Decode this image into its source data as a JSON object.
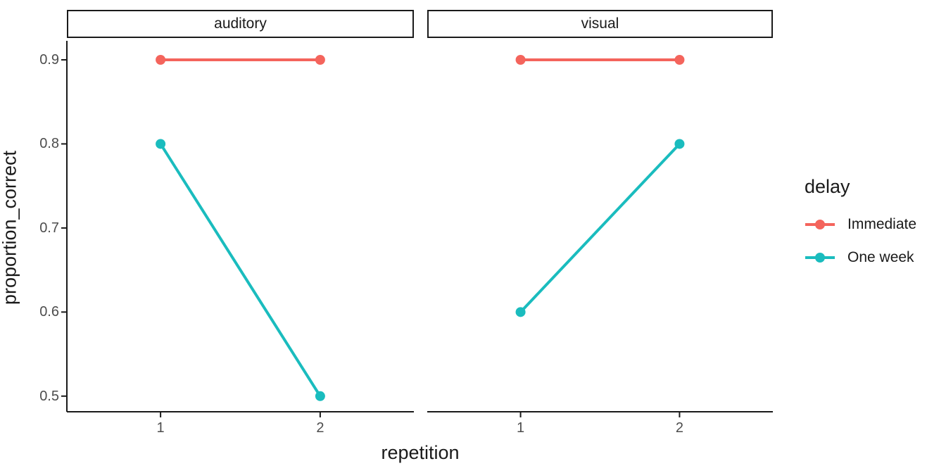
{
  "legend": {
    "title": "delay",
    "items": [
      {
        "label": "Immediate",
        "color": "#f4645c"
      },
      {
        "label": "One week",
        "color": "#1abcbe"
      }
    ]
  },
  "chart_data": {
    "type": "line",
    "title": "",
    "xlabel": "repetition",
    "ylabel": "proportion_correct",
    "legend_title": "delay",
    "legend_position": "right",
    "grid": false,
    "x_categories": [
      "1",
      "2"
    ],
    "y_ticks": [
      "0.9",
      "0.8",
      "0.7",
      "0.6",
      "0.5"
    ],
    "y_tick_values": [
      0.9,
      0.8,
      0.7,
      0.6,
      0.5
    ],
    "ylim": [
      0.48,
      0.92
    ],
    "facets": [
      {
        "label": "auditory",
        "series": [
          {
            "name": "Immediate",
            "color": "#f4645c",
            "x": [
              1,
              2
            ],
            "y": [
              0.9,
              0.9
            ]
          },
          {
            "name": "One week",
            "color": "#1abcbe",
            "x": [
              1,
              2
            ],
            "y": [
              0.8,
              0.5
            ]
          }
        ]
      },
      {
        "label": "visual",
        "series": [
          {
            "name": "Immediate",
            "color": "#f4645c",
            "x": [
              1,
              2
            ],
            "y": [
              0.9,
              0.9
            ]
          },
          {
            "name": "One week",
            "color": "#1abcbe",
            "x": [
              1,
              2
            ],
            "y": [
              0.6,
              0.8
            ]
          }
        ]
      }
    ],
    "colors": {
      "axis_line": "#1a1a1a",
      "tick_text": "#4d4d4d",
      "strip_border": "#1a1a1a"
    }
  }
}
